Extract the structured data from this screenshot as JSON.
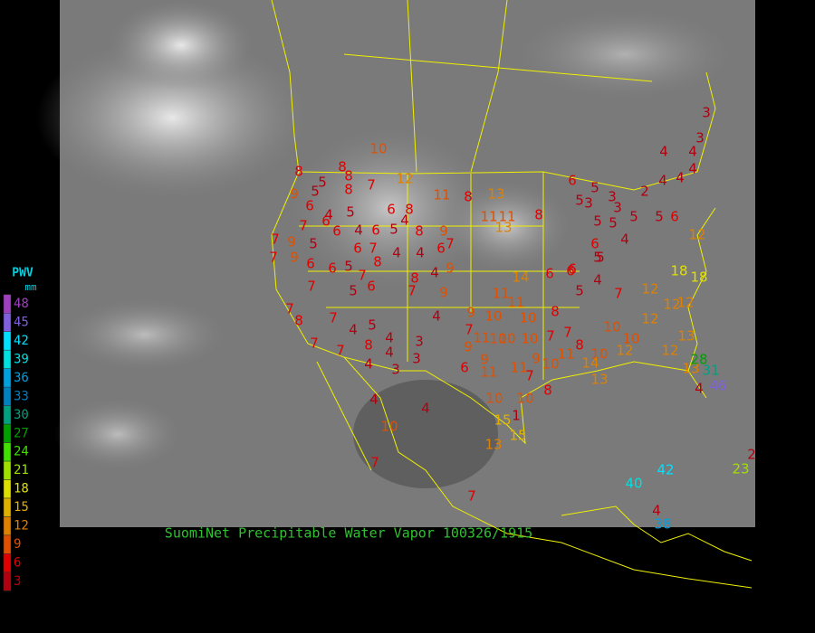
{
  "title": "SuomiNet Precipitable Water Vapor 100326/1915",
  "legend": {
    "title": "PWV",
    "unit": "mm",
    "items": [
      {
        "value": 3,
        "color": "#b00010"
      },
      {
        "value": 6,
        "color": "#e00000"
      },
      {
        "value": 9,
        "color": "#e05000"
      },
      {
        "value": 12,
        "color": "#e08000"
      },
      {
        "value": 15,
        "color": "#e0b000"
      },
      {
        "value": 18,
        "color": "#e0e000"
      },
      {
        "value": 21,
        "color": "#a0e000"
      },
      {
        "value": 24,
        "color": "#40e000"
      },
      {
        "value": 27,
        "color": "#00a000"
      },
      {
        "value": 30,
        "color": "#00a080"
      },
      {
        "value": 33,
        "color": "#0080c0"
      },
      {
        "value": 36,
        "color": "#00a0e0"
      },
      {
        "value": 39,
        "color": "#00e0e0"
      },
      {
        "value": 42,
        "color": "#00e0ff"
      },
      {
        "value": 45,
        "color": "#8060e0"
      },
      {
        "value": 48,
        "color": "#a040c0"
      }
    ]
  },
  "stations": [
    10,
    8,
    8,
    5,
    8,
    7,
    12,
    9,
    5,
    8,
    11,
    8,
    13,
    6,
    4,
    5,
    6,
    8,
    4,
    7,
    6,
    6,
    4,
    6,
    5,
    8,
    9,
    11,
    11,
    13,
    8,
    7,
    9,
    5,
    6,
    7,
    4,
    4,
    6,
    7,
    7,
    9,
    6,
    6,
    5,
    7,
    8,
    8,
    4,
    9,
    14,
    6,
    6,
    7,
    5,
    6,
    7,
    9,
    11,
    11,
    8,
    4,
    7,
    8,
    7,
    4,
    5,
    4,
    8,
    4,
    3,
    3,
    9,
    10,
    7,
    11,
    10,
    10,
    9,
    10,
    10,
    7,
    7,
    7,
    7,
    4,
    3,
    6,
    9,
    11,
    11,
    9,
    10,
    11,
    8,
    7,
    10,
    10,
    15,
    1,
    15,
    13,
    4,
    4,
    10,
    7,
    7,
    5,
    4,
    7,
    10,
    10,
    12,
    12,
    8,
    10,
    12,
    12,
    13,
    18,
    18,
    12,
    12,
    14,
    13,
    13,
    28,
    31,
    46,
    4,
    40,
    42,
    4,
    38,
    2,
    23,
    12,
    6,
    3,
    3,
    4,
    4,
    4,
    4,
    4,
    2,
    6,
    5,
    5,
    3,
    3,
    5,
    3,
    5,
    5,
    5,
    4,
    6,
    5,
    6,
    5
  ]
}
